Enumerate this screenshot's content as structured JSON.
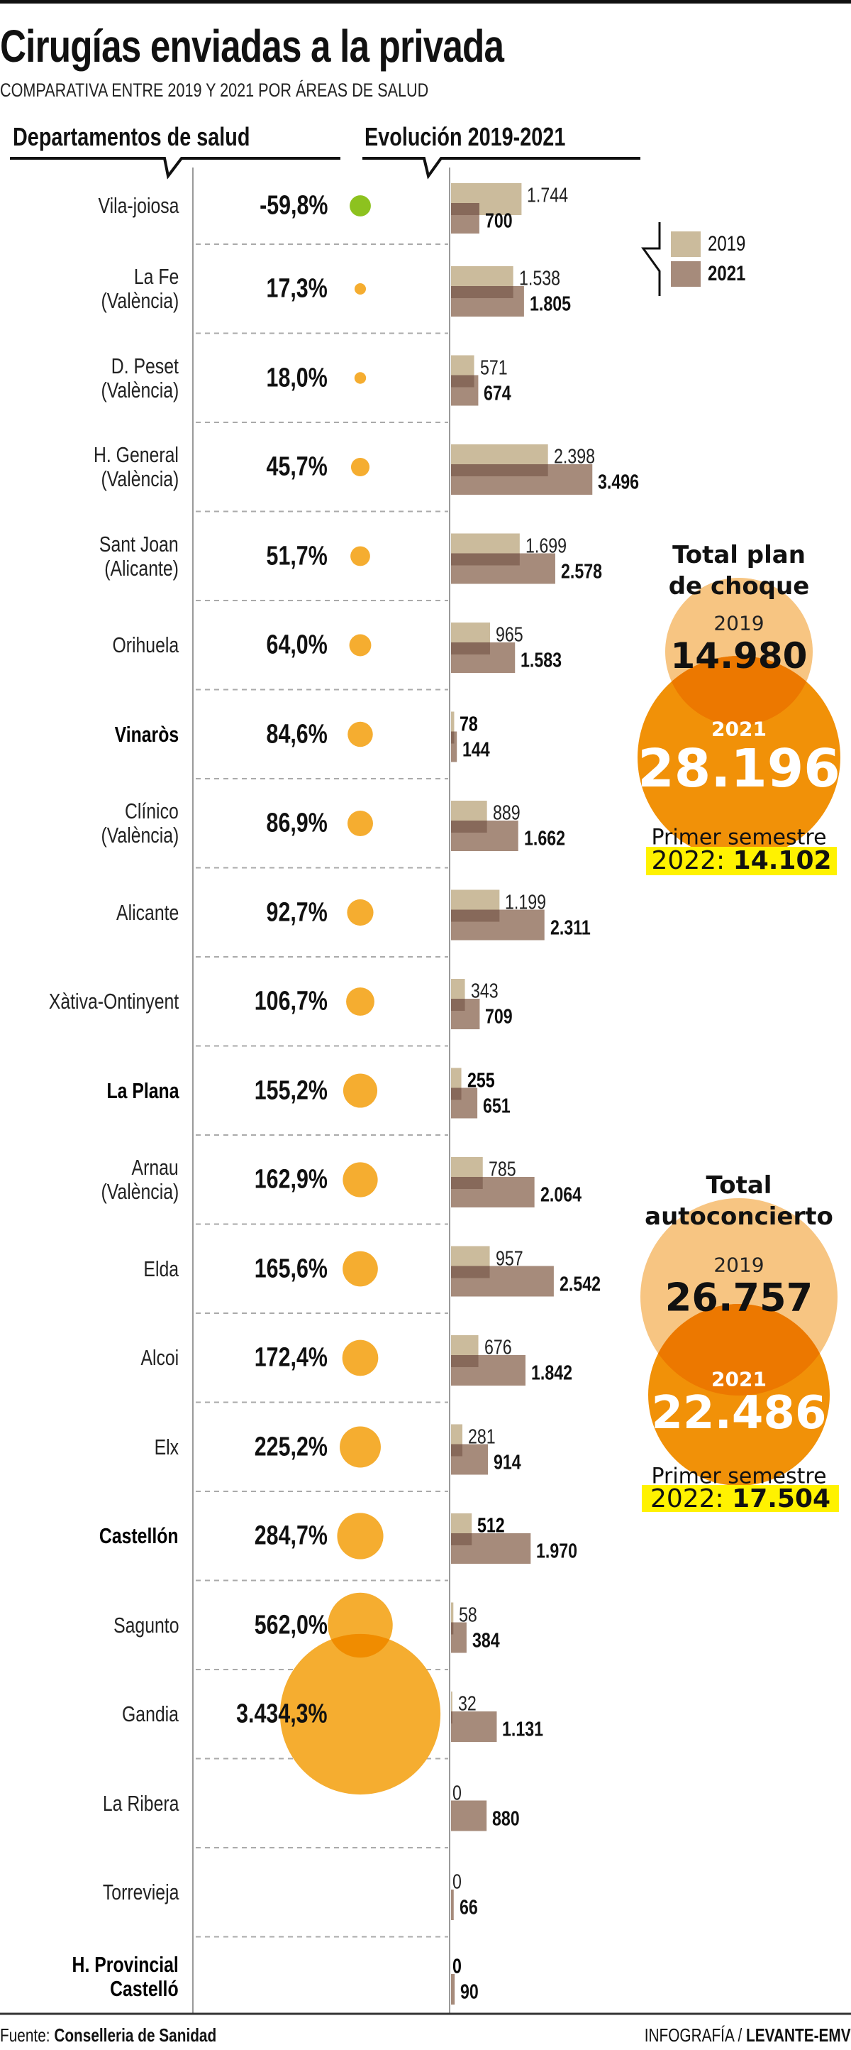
{
  "header": {
    "title": "Cirugías enviadas a la privada",
    "subtitle": "COMPARATIVA ENTRE 2019 Y 2021 POR ÁREAS DE SALUD"
  },
  "columns": {
    "departments": "Departamentos de salud",
    "evolution": "Evolución 2019-2021"
  },
  "legend": {
    "y2019": "2019",
    "y2021": "2021"
  },
  "colors": {
    "bar_2019": "#cbbb9c",
    "bar_2021": "#a68b7b",
    "bar_overlap": "#87695a",
    "dot_positive": "#f5ad30",
    "dot_negative": "#8dc21f",
    "dot_overlap": "#f08c00",
    "total_2019": "#f7c582",
    "total_2021": "#f19108",
    "total_overlap": "#ec7800",
    "highlight_box": "#fff200"
  },
  "rows": [
    {
      "name": [
        "Vila-joiosa"
      ],
      "pct": "-59,8%",
      "label2019": "1.744",
      "label2021": "700",
      "highlight": false
    },
    {
      "name": [
        "La Fe",
        "(València)"
      ],
      "pct": "17,3%",
      "label2019": "1.538",
      "label2021": "1.805",
      "highlight": false
    },
    {
      "name": [
        "D. Peset",
        "(València)"
      ],
      "pct": "18,0%",
      "label2019": "571",
      "label2021": "674",
      "highlight": false
    },
    {
      "name": [
        "H. General",
        "(València)"
      ],
      "pct": "45,7%",
      "label2019": "2.398",
      "label2021": "3.496",
      "highlight": false
    },
    {
      "name": [
        "Sant Joan",
        "(Alicante)"
      ],
      "pct": "51,7%",
      "label2019": "1.699",
      "label2021": "2.578",
      "highlight": false
    },
    {
      "name": [
        "Orihuela"
      ],
      "pct": "64,0%",
      "label2019": "965",
      "label2021": "1.583",
      "highlight": false
    },
    {
      "name": [
        "Vinaròs"
      ],
      "pct": "84,6%",
      "label2019": "78",
      "label2021": "144",
      "highlight": true
    },
    {
      "name": [
        "Clínico",
        "(València)"
      ],
      "pct": "86,9%",
      "label2019": "889",
      "label2021": "1.662",
      "highlight": false
    },
    {
      "name": [
        "Alicante"
      ],
      "pct": "92,7%",
      "label2019": "1.199",
      "label2021": "2.311",
      "highlight": false
    },
    {
      "name": [
        "Xàtiva-Ontinyent"
      ],
      "pct": "106,7%",
      "label2019": "343",
      "label2021": "709",
      "highlight": false
    },
    {
      "name": [
        "La Plana"
      ],
      "pct": "155,2%",
      "label2019": "255",
      "label2021": "651",
      "highlight": true
    },
    {
      "name": [
        "Arnau",
        "(València)"
      ],
      "pct": "162,9%",
      "label2019": "785",
      "label2021": "2.064",
      "highlight": false
    },
    {
      "name": [
        "Elda"
      ],
      "pct": "165,6%",
      "label2019": "957",
      "label2021": "2.542",
      "highlight": false
    },
    {
      "name": [
        "Alcoi"
      ],
      "pct": "172,4%",
      "label2019": "676",
      "label2021": "1.842",
      "highlight": false
    },
    {
      "name": [
        "Elx"
      ],
      "pct": "225,2%",
      "label2019": "281",
      "label2021": "914",
      "highlight": false
    },
    {
      "name": [
        "Castellón"
      ],
      "pct": "284,7%",
      "label2019": "512",
      "label2021": "1.970",
      "highlight": true
    },
    {
      "name": [
        "Sagunto"
      ],
      "pct": "562,0%",
      "label2019": "58",
      "label2021": "384",
      "highlight": false
    },
    {
      "name": [
        "Gandia"
      ],
      "pct": "3.434,3%",
      "label2019": "32",
      "label2021": "1.131",
      "highlight": false
    },
    {
      "name": [
        "La Ribera"
      ],
      "pct": "",
      "label2019": "0",
      "label2021": "880",
      "highlight": false
    },
    {
      "name": [
        "Torrevieja"
      ],
      "pct": "",
      "label2019": "0",
      "label2021": "66",
      "highlight": false
    },
    {
      "name": [
        "H. Provincial",
        "Castelló"
      ],
      "pct": "",
      "label2019": "0",
      "label2021": "90",
      "highlight": true
    }
  ],
  "chart_data": {
    "type": "bar",
    "orientation": "horizontal",
    "title": "Evolución 2019-2021",
    "categories": [
      "Vila-joiosa",
      "La Fe (València)",
      "D. Peset (València)",
      "H. General (València)",
      "Sant Joan (Alicante)",
      "Orihuela",
      "Vinaròs",
      "Clínico (València)",
      "Alicante",
      "Xàtiva-Ontinyent",
      "La Plana",
      "Arnau (València)",
      "Elda",
      "Alcoi",
      "Elx",
      "Castellón",
      "Sagunto",
      "Gandia",
      "La Ribera",
      "Torrevieja",
      "H. Provincial Castelló"
    ],
    "series": [
      {
        "name": "2019",
        "values": [
          1744,
          1538,
          571,
          2398,
          1699,
          965,
          78,
          889,
          1199,
          343,
          255,
          785,
          957,
          676,
          281,
          512,
          58,
          32,
          0,
          0,
          0
        ]
      },
      {
        "name": "2021",
        "values": [
          700,
          1805,
          674,
          3496,
          2578,
          1583,
          144,
          1662,
          2311,
          709,
          651,
          2064,
          2542,
          1842,
          914,
          1970,
          384,
          1131,
          880,
          66,
          90
        ]
      }
    ],
    "change_pct": [
      -59.8,
      17.3,
      18.0,
      45.7,
      51.7,
      64.0,
      84.6,
      86.9,
      92.7,
      106.7,
      155.2,
      162.9,
      165.6,
      172.4,
      225.2,
      284.7,
      562.0,
      3434.3,
      null,
      null,
      null
    ],
    "legend": "right",
    "grid": false
  },
  "totals": [
    {
      "title": [
        "Total plan",
        "de choque"
      ],
      "label2019": "2019",
      "value2019": "14.980",
      "label2021": "2021",
      "value2021": "28.196",
      "semester_label": "Primer semestre",
      "semester_year": "2022:",
      "semester_value": "14.102",
      "num2019": 14980,
      "num2021": 28196
    },
    {
      "title": [
        "Total",
        "autoconcierto"
      ],
      "label2019": "2019",
      "value2019": "26.757",
      "label2021": "2021",
      "value2021": "22.486",
      "semester_label": "Primer semestre",
      "semester_year": "2022:",
      "semester_value": "17.504",
      "num2019": 26757,
      "num2021": 22486
    }
  ],
  "footer": {
    "source_label": "Fuente:",
    "source": "Conselleria de Sanidad",
    "credit_label": "INFOGRAFÍA /",
    "credit": "LEVANTE-EMV"
  }
}
